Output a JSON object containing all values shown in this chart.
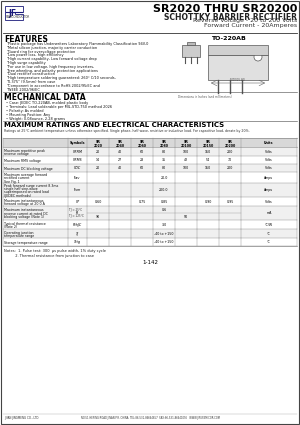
{
  "title": "SR2020 THRU SR20200",
  "subtitle": "SCHOTTKY BARRIER RECTIFIER",
  "subtitle2": "Reverse Voltage - 20 to 200 Volts",
  "subtitle3": "Forward Current - 20Amperes",
  "package": "TO-220AB",
  "features_title": "FEATURES",
  "features": [
    "Plastic package has Underwriters Laboratory Flammability Classification 94V-0",
    "Metal silicon junction, majority carrier conduction",
    "Guard ring for overvoltage protection",
    "Low power loss, high efficiency",
    "High current capability, Low forward voltage drop",
    "High surge capability",
    "For use in low voltage, high frequency inverters,",
    "free wheeling, and polarity protection applications",
    "Dual rectifier construction",
    "High temperature soldering guaranteed: 260° C/10 seconds,",
    "0.375” (9.5mm) from case",
    "Component in accordance to RoHS 2002/95/EC and",
    "WEEE 2002/96/EC"
  ],
  "mech_title": "MECHANICAL DATA",
  "mech_data": [
    "Case: JEDEC TO-220AB, molded plastic body",
    "Terminals: Lead solderable per MIL-STD-750 method 2026",
    "Polarity: As molded",
    "Mounting Position: Any",
    "Weight: 0.08ounce, 2.28 grams"
  ],
  "table_title": "MAXIMUM RATINGS AND ELECTRICAL CHARACTERISTICS",
  "table_note": "Ratings at 25°C ambient temperature unless otherwise specified. Single phase, half wave, resistive or inductive load. For capacitive load, derate by 20%.",
  "notes": [
    "Notes:  1. Pulse test: 300  μs pulse width, 1% duty cycle",
    "          2. Thermal resistance from junction to case"
  ],
  "page": "1-142",
  "company": "JINAN JINGMENG CO., LTD.",
  "address": "NO.51 HEPING ROAD JINAN P.R. CHINA  TEL:86-531-86664857  FAX:86-531-86641096   WWW.JIFUSEMICOR.COM",
  "bg_color": "#ffffff",
  "logo_color": "#1a1a7a",
  "header_line_color": "#000000",
  "table_header_bg": "#d8d8d8",
  "table_row_alt": "#f0f0f0",
  "table_border": "#888888"
}
